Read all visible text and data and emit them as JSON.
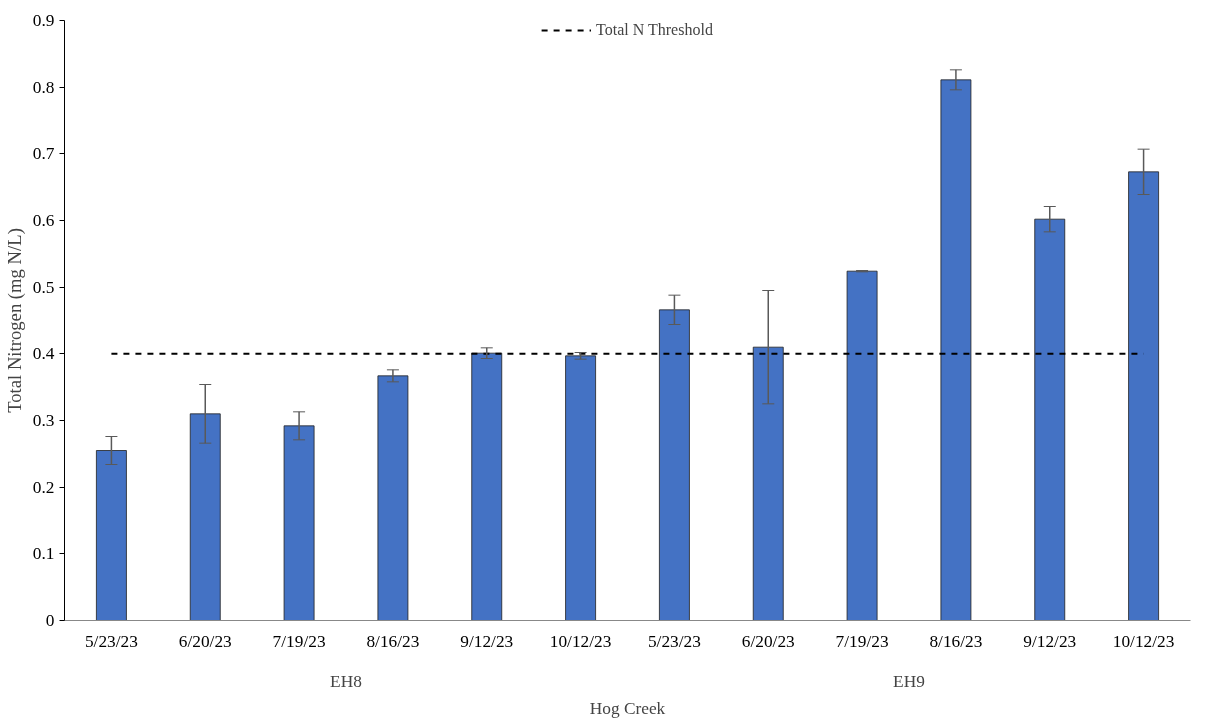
{
  "chart_data": {
    "type": "bar",
    "xlabel": "Hog Creek",
    "ylabel": "Total Nitrogen (mg N/L)",
    "categories": [
      "5/23/23",
      "6/20/23",
      "7/19/23",
      "8/16/23",
      "9/12/23",
      "10/12/23",
      "5/23/23",
      "6/20/23",
      "7/19/23",
      "8/16/23",
      "9/12/23",
      "10/12/23"
    ],
    "values": [
      0.255,
      0.31,
      0.292,
      0.367,
      0.401,
      0.397,
      0.466,
      0.41,
      0.524,
      0.811,
      0.602,
      0.673
    ],
    "errors": [
      0.021,
      0.044,
      0.021,
      0.009,
      0.008,
      0.005,
      0.022,
      0.085,
      0.001,
      0.015,
      0.019,
      0.034
    ],
    "color": "#4472c4",
    "annotations": [
      "EH8",
      "EH9"
    ],
    "ref_lines": [
      {
        "axis": "y",
        "value": 0.4,
        "label": "Total N Threshold",
        "color": "#000000",
        "line_style": "dashed"
      }
    ],
    "ylim": [
      0,
      0.9
    ],
    "yticks": [
      0,
      0.1,
      0.2,
      0.3,
      0.4,
      0.5,
      0.6,
      0.7,
      0.8,
      0.9
    ],
    "grid": false,
    "legend": "top"
  }
}
